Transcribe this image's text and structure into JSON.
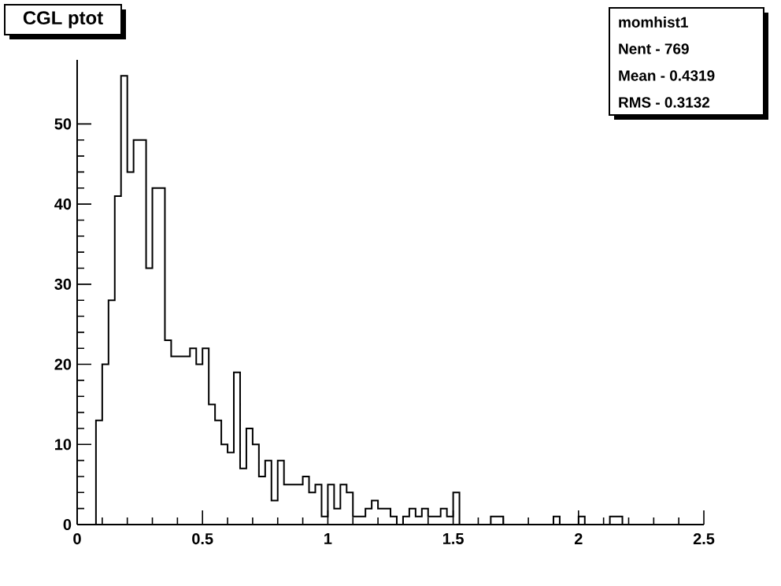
{
  "chart_data": {
    "type": "histogram",
    "title": "CGL ptot",
    "annotations": [
      "momhist1",
      "Nent - 769",
      "Mean  - 0.4319",
      "RMS   - 0.3132"
    ],
    "bins": [
      0.075,
      0.1,
      0.125,
      0.15,
      0.175,
      0.2,
      0.225,
      0.25,
      0.275,
      0.3,
      0.325,
      0.35,
      0.375,
      0.4,
      0.425,
      0.45,
      0.475,
      0.5,
      0.525,
      0.55,
      0.575,
      0.6,
      0.625,
      0.65,
      0.675,
      0.7,
      0.725,
      0.75,
      0.775,
      0.8,
      0.825,
      0.85,
      0.875,
      0.9,
      0.925,
      0.95,
      0.975,
      1.0,
      1.025,
      1.05,
      1.075,
      1.1,
      1.125,
      1.15,
      1.175,
      1.2,
      1.225,
      1.25,
      1.275,
      1.3,
      1.325,
      1.35,
      1.375,
      1.4,
      1.425,
      1.45,
      1.475,
      1.5,
      1.525,
      1.55,
      1.575,
      1.6,
      1.625,
      1.65,
      1.675,
      1.7,
      1.725,
      1.75,
      1.775,
      1.8,
      1.825,
      1.85,
      1.875,
      1.9,
      1.925,
      1.95,
      1.975,
      2.0,
      2.025,
      2.05,
      2.075,
      2.1,
      2.125,
      2.15,
      2.175
    ],
    "values": [
      13,
      20,
      28,
      41,
      56,
      44,
      48,
      48,
      32,
      42,
      42,
      23,
      21,
      21,
      21,
      22,
      20,
      22,
      15,
      13,
      10,
      9,
      19,
      7,
      12,
      10,
      6,
      8,
      3,
      8,
      5,
      5,
      5,
      6,
      4,
      5,
      1,
      5,
      2,
      5,
      4,
      1,
      1,
      2,
      3,
      2,
      2,
      1,
      0,
      1,
      2,
      1,
      2,
      1,
      1,
      2,
      1,
      4,
      0,
      0,
      0,
      0,
      0,
      1,
      1,
      0,
      0,
      0,
      0,
      0,
      0,
      0,
      0,
      1,
      0,
      0,
      0,
      1,
      0,
      0,
      0,
      0,
      1,
      1
    ],
    "color": "#000000",
    "xlim": [
      0,
      2.5
    ],
    "ylim": [
      0,
      58
    ],
    "xticks": [
      0,
      0.5,
      1,
      1.5,
      2,
      2.5
    ],
    "yticks": [
      0,
      10,
      20,
      30,
      40,
      50
    ]
  }
}
